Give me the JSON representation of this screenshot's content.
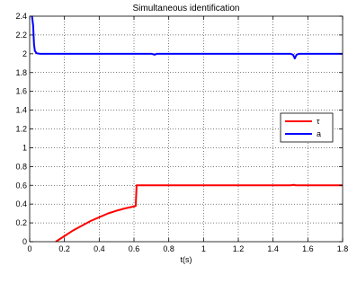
{
  "chart_data": {
    "type": "line",
    "title": "Simultaneous identification",
    "xlabel": "t(s)",
    "ylabel": "",
    "xlim": [
      0,
      1.8
    ],
    "ylim": [
      0,
      2.4
    ],
    "grid": true,
    "legend_position": "right",
    "x_ticks": [
      "0",
      "0.2",
      "0.4",
      "0.6",
      "0.8",
      "1",
      "1.2",
      "1.4",
      "1.6",
      "1.8"
    ],
    "y_ticks": [
      "0",
      "0.2",
      "0.4",
      "0.6",
      "0.8",
      "1",
      "1.2",
      "1.4",
      "1.6",
      "1.8",
      "2",
      "2.2",
      "2.4"
    ],
    "series": [
      {
        "name": "τ",
        "color": "#ff0000",
        "points": [
          [
            0.15,
            0.0
          ],
          [
            0.2,
            0.06
          ],
          [
            0.25,
            0.12
          ],
          [
            0.3,
            0.17
          ],
          [
            0.35,
            0.22
          ],
          [
            0.4,
            0.26
          ],
          [
            0.45,
            0.3
          ],
          [
            0.5,
            0.33
          ],
          [
            0.55,
            0.355
          ],
          [
            0.6,
            0.375
          ],
          [
            0.61,
            0.38
          ],
          [
            0.615,
            0.6
          ],
          [
            1.0,
            0.6
          ],
          [
            1.5,
            0.6
          ],
          [
            1.52,
            0.605
          ],
          [
            1.53,
            0.6
          ],
          [
            1.8,
            0.6
          ]
        ]
      },
      {
        "name": "a",
        "color": "#0000ff",
        "points": [
          [
            0.0,
            2.45
          ],
          [
            0.01,
            2.45
          ],
          [
            0.02,
            2.3
          ],
          [
            0.025,
            2.1
          ],
          [
            0.03,
            2.03
          ],
          [
            0.04,
            2.005
          ],
          [
            0.06,
            2.0
          ],
          [
            0.7,
            2.0
          ],
          [
            0.72,
            1.99
          ],
          [
            0.73,
            2.0
          ],
          [
            1.5,
            2.0
          ],
          [
            1.515,
            1.99
          ],
          [
            1.525,
            1.95
          ],
          [
            1.535,
            1.99
          ],
          [
            1.55,
            2.0
          ],
          [
            1.8,
            2.0
          ]
        ]
      }
    ]
  }
}
